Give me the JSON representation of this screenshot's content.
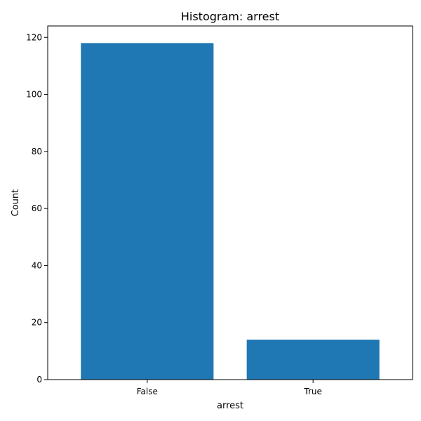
{
  "chart_data": {
    "type": "bar",
    "title": "Histogram: arrest",
    "xlabel": "arrest",
    "ylabel": "Count",
    "categories": [
      "False",
      "True"
    ],
    "values": [
      118,
      14
    ],
    "ylim": [
      0,
      124
    ],
    "yticks": [
      0,
      20,
      40,
      60,
      80,
      100,
      120
    ],
    "bar_color": "#1f77b4",
    "grid": false
  }
}
